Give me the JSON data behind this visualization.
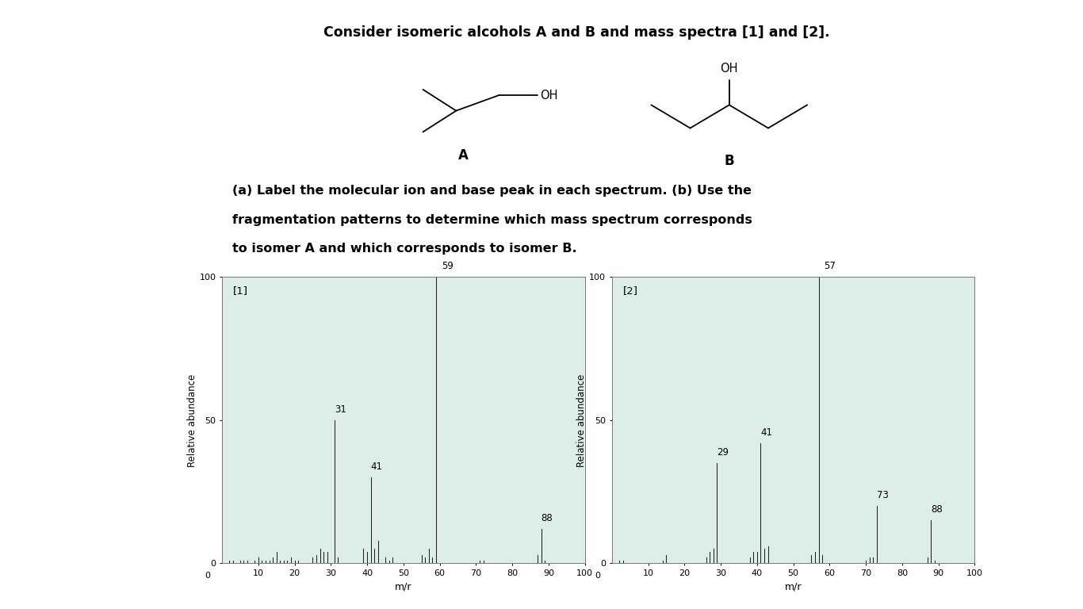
{
  "title": "Consider isomeric alcohols A and B and mass spectra [1] and [2].",
  "question_text_lines": [
    "(a) Label the molecular ion and base peak in each spectrum. (b) Use the",
    "fragmentation patterns to determine which mass spectrum corresponds",
    "to isomer A and which corresponds to isomer B."
  ],
  "spectrum1_label": "[1]",
  "spectrum2_label": "[2]",
  "spectrum1_peaks": {
    "2": 1,
    "3": 1,
    "5": 1,
    "6": 1,
    "7": 1,
    "9": 1,
    "10": 2,
    "11": 1,
    "12": 1,
    "13": 1,
    "14": 2,
    "15": 4,
    "16": 1,
    "17": 1,
    "18": 1,
    "19": 2,
    "20": 1,
    "21": 1,
    "25": 2,
    "26": 3,
    "27": 5,
    "28": 4,
    "29": 4,
    "31": 50,
    "32": 2,
    "39": 5,
    "40": 4,
    "41": 30,
    "42": 5,
    "43": 8,
    "45": 2,
    "46": 1,
    "47": 2,
    "55": 3,
    "56": 2,
    "57": 5,
    "58": 2,
    "59": 100,
    "71": 1,
    "72": 1,
    "87": 3,
    "88": 12,
    "89": 1
  },
  "spectrum2_peaks": {
    "2": 1,
    "3": 1,
    "14": 1,
    "15": 3,
    "26": 2,
    "27": 4,
    "28": 5,
    "29": 35,
    "38": 2,
    "39": 4,
    "40": 4,
    "41": 42,
    "42": 5,
    "43": 6,
    "55": 3,
    "56": 4,
    "57": 100,
    "58": 3,
    "70": 1,
    "71": 2,
    "72": 2,
    "73": 20,
    "87": 2,
    "88": 15,
    "89": 1
  },
  "spectrum1_annotations": [
    {
      "mz": 59,
      "height": 100,
      "label": "59",
      "xoff": 1.5,
      "yoff": 2
    },
    {
      "mz": 31,
      "height": 50,
      "label": "31",
      "xoff": 0,
      "yoff": 2
    },
    {
      "mz": 41,
      "height": 30,
      "label": "41",
      "xoff": 0,
      "yoff": 2
    },
    {
      "mz": 88,
      "height": 12,
      "label": "88",
      "xoff": 0,
      "yoff": 2
    }
  ],
  "spectrum2_annotations": [
    {
      "mz": 57,
      "height": 100,
      "label": "57",
      "xoff": 1.5,
      "yoff": 2
    },
    {
      "mz": 41,
      "height": 42,
      "label": "41",
      "xoff": 0,
      "yoff": 2
    },
    {
      "mz": 29,
      "height": 35,
      "label": "29",
      "xoff": 0,
      "yoff": 2
    },
    {
      "mz": 73,
      "height": 20,
      "label": "73",
      "xoff": 0,
      "yoff": 2
    },
    {
      "mz": 88,
      "height": 15,
      "label": "88",
      "xoff": 0,
      "yoff": 2
    }
  ],
  "xlabel": "m/r",
  "ylabel": "Relative abundance",
  "xlim": [
    0,
    100
  ],
  "ylim": [
    0,
    100
  ],
  "xticks": [
    10,
    20,
    30,
    40,
    50,
    60,
    70,
    80,
    90,
    100
  ],
  "yticks": [
    0,
    50,
    100
  ],
  "plot_bg": "#ddeee8",
  "bar_color": "#222222",
  "fig_bg": "#ffffff",
  "text_color": "#000000",
  "title_bg": "#a0c4d8",
  "question_bg": "#a0c4d8",
  "mol_area_bg": "#d0e8f0"
}
